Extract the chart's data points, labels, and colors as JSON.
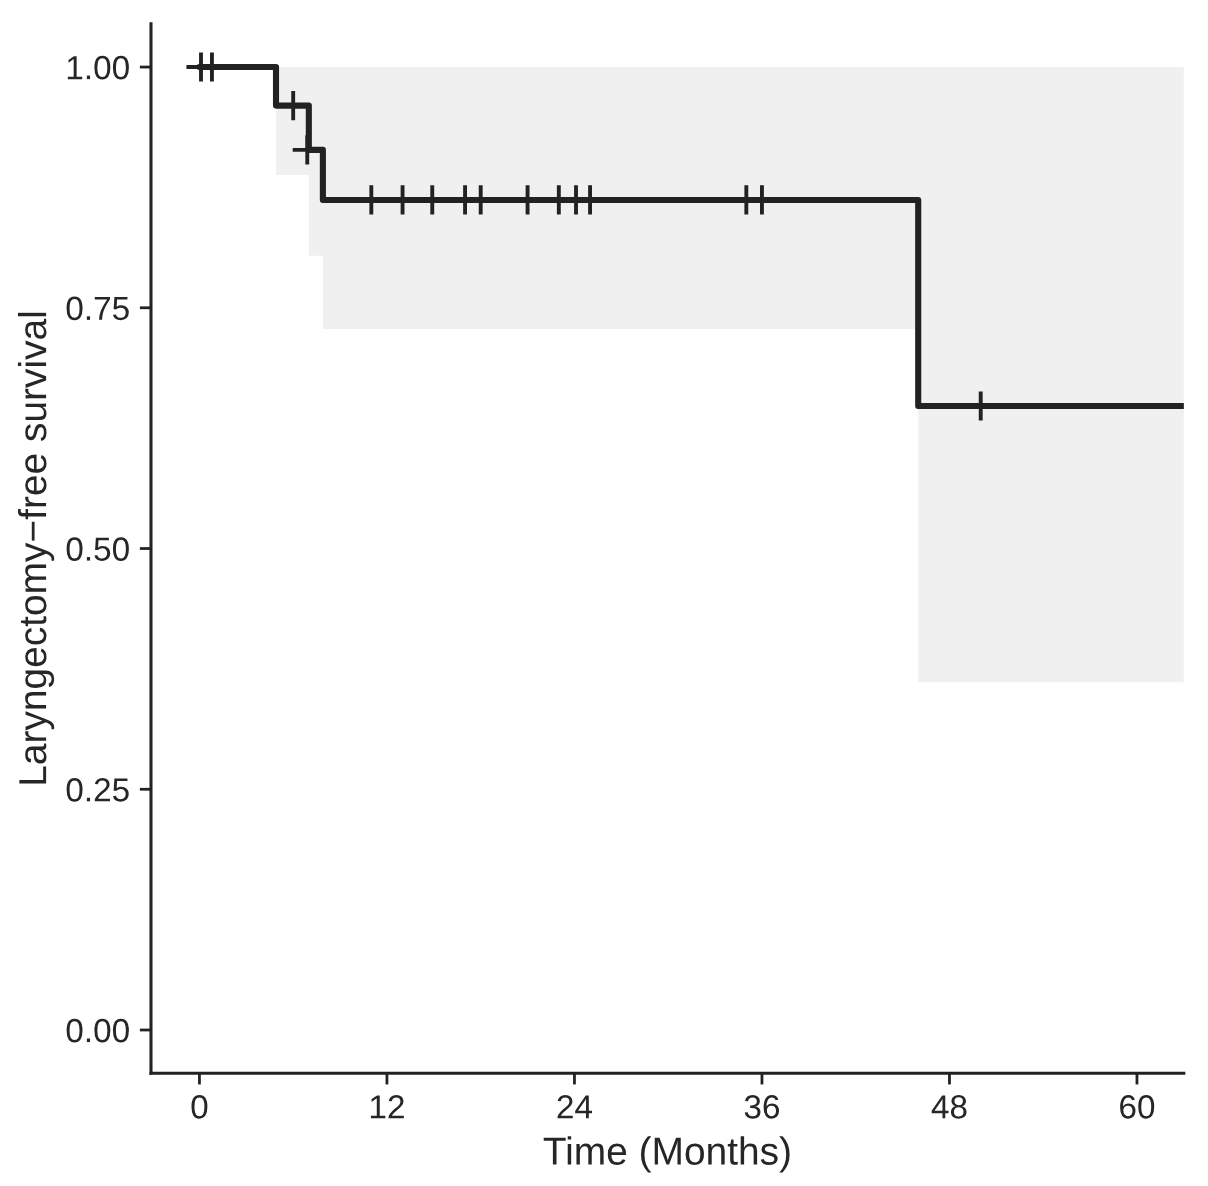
{
  "chart_data": {
    "type": "step",
    "xlabel": "Time (Months)",
    "ylabel": "Laryngectomy−free survival",
    "xlim": [
      -3.1,
      63.0
    ],
    "xticks": [
      0,
      12,
      24,
      36,
      48,
      60
    ],
    "ylim": [
      -0.045,
      1.045
    ],
    "yticks": [
      {
        "value": 0,
        "label": "0.00"
      },
      {
        "value": 0.25,
        "label": "0.25"
      },
      {
        "value": 0.5,
        "label": "0.50"
      },
      {
        "value": 0.75,
        "label": "0.75"
      },
      {
        "value": 1,
        "label": "1.00"
      }
    ],
    "grid": false,
    "legend": false,
    "series": [
      {
        "color": "#222222",
        "x": [
          0,
          4.9,
          7.0,
          7.9,
          46.0,
          63.0
        ],
        "values": [
          1,
          0.96,
          0.914,
          0.862,
          0.648,
          0.648
        ],
        "lower": [
          null,
          0.888,
          0.804,
          0.728,
          0.361,
          0.361
        ],
        "upper": [
          null,
          1,
          1,
          1,
          1,
          1
        ]
      },
      {
        "type": "scatter",
        "marker": "cross",
        "color": "#222222",
        "x": [
          0.1,
          0.8,
          6.0,
          6.9,
          11.0,
          13.0,
          14.9,
          17.0,
          18.0,
          21.0,
          23.0,
          24.1,
          25.0,
          35.0,
          36.0,
          50.0
        ],
        "values": [
          1,
          1,
          0.96,
          0.914,
          0.862,
          0.862,
          0.862,
          0.862,
          0.862,
          0.862,
          0.862,
          0.862,
          0.862,
          0.862,
          0.862,
          0.648
        ]
      }
    ]
  }
}
